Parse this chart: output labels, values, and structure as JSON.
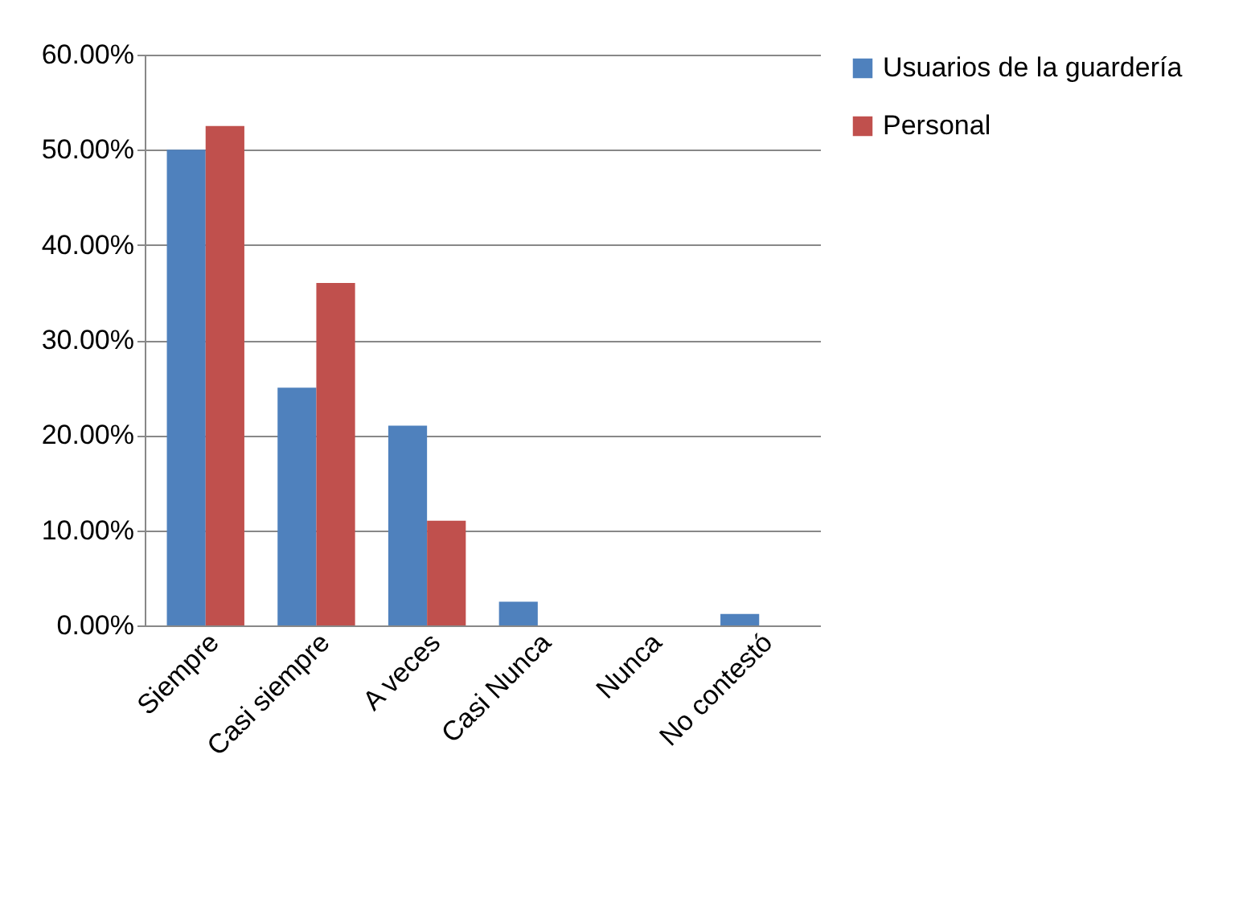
{
  "chart_data": {
    "type": "bar",
    "categories": [
      "Siempre",
      "Casi siempre",
      "A veces",
      "Casi Nunca",
      "Nunca",
      "No contestó"
    ],
    "series": [
      {
        "name": "Usuarios de la guardería",
        "color": "#4f81bd",
        "values": [
          50,
          25,
          21,
          2.5,
          0,
          1.2
        ]
      },
      {
        "name": "Personal",
        "color": "#c0504d",
        "values": [
          52.5,
          36,
          11,
          0,
          0,
          0
        ]
      }
    ],
    "ylim": [
      0,
      60
    ],
    "yticks": [
      {
        "value": 0,
        "label": "0.00%"
      },
      {
        "value": 10,
        "label": "10.00%"
      },
      {
        "value": 20,
        "label": "20.00%"
      },
      {
        "value": 30,
        "label": "30.00%"
      },
      {
        "value": 40,
        "label": "40.00%"
      },
      {
        "value": 50,
        "label": "50.00%"
      },
      {
        "value": 60,
        "label": "60.00%"
      }
    ],
    "grid": "y",
    "legend": "right"
  }
}
